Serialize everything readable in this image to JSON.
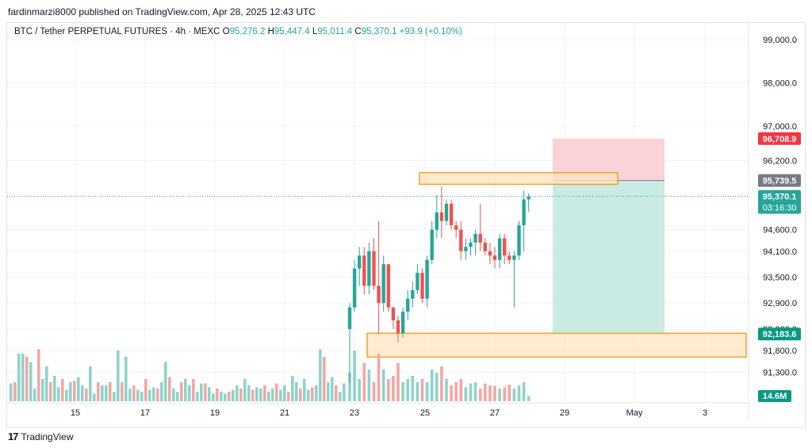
{
  "header": {
    "publisher": "fardinmarzi8000 published on TradingView.com, Apr 28, 2025 12:43 UTC"
  },
  "legend": {
    "symbol": "BTC / Tether PERPETUAL FUTURES · 4h · MEXC",
    "open_label": "O",
    "open": "95,276.2",
    "high_label": "H",
    "high": "95,447.4",
    "low_label": "L",
    "low": "95,011.4",
    "close_label": "C",
    "close": "95,370.1",
    "change": "+93.9 (+0.10%)"
  },
  "price_axis": {
    "ticks": [
      "99,000.0",
      "98,000.0",
      "97,000.0",
      "96,200.0",
      "94,600.0",
      "94,100.0",
      "93,500.0",
      "92,900.0",
      "92,300.0",
      "91,800.0",
      "91,300.0"
    ],
    "tick_values": [
      99000,
      98000,
      97000,
      96200,
      94600,
      94100,
      93500,
      92900,
      92300,
      91800,
      91300
    ],
    "badges": {
      "stop": {
        "text": "96,708.9",
        "value": 96708.9,
        "color": "#f23645"
      },
      "entry": {
        "text": "95,739.5",
        "value": 95739.5,
        "color": "#787b86"
      },
      "last": {
        "text": "95,370.1",
        "value": 95370.1,
        "color": "#26a69a"
      },
      "countdown": {
        "text": "03:16:30"
      },
      "target": {
        "text": "92,183.6",
        "value": 92183.6,
        "color": "#089981"
      },
      "volume": {
        "text": "14.6M",
        "color": "#089981"
      }
    }
  },
  "time_axis": {
    "labels": [
      "15",
      "17",
      "19",
      "21",
      "23",
      "25",
      "27",
      "29",
      "May",
      "3"
    ]
  },
  "footer": {
    "brand": "TradingView"
  },
  "colors": {
    "up": "#26a69a",
    "down": "#ef5350",
    "up_vol": "#8fd3c9",
    "down_vol": "#f4a6a4",
    "zone_fill": "#fde4c0",
    "zone_border": "#f0a32f",
    "risk": "#f9d3d6",
    "reward": "#c9ebe3",
    "grid": "#f0f3fa"
  },
  "chart_data": {
    "type": "candlestick",
    "title": "BTC / Tether PERPETUAL FUTURES · 4h · MEXC",
    "timeframe": "4h",
    "x_labels": [
      "15",
      "17",
      "19",
      "21",
      "23",
      "25",
      "27",
      "29",
      "May",
      "3"
    ],
    "ylim": [
      91000,
      99400
    ],
    "candles": [
      {
        "o": 92300,
        "h": 92900,
        "l": 91050,
        "c": 92800
      },
      {
        "o": 92800,
        "h": 93900,
        "l": 92700,
        "c": 93700
      },
      {
        "o": 93700,
        "h": 94200,
        "l": 93300,
        "c": 94000
      },
      {
        "o": 94000,
        "h": 94200,
        "l": 93100,
        "c": 93300
      },
      {
        "o": 93300,
        "h": 94300,
        "l": 93100,
        "c": 94100
      },
      {
        "o": 94100,
        "h": 94400,
        "l": 93200,
        "c": 93300
      },
      {
        "o": 93300,
        "h": 94800,
        "l": 92200,
        "c": 92900
      },
      {
        "o": 92900,
        "h": 94000,
        "l": 92700,
        "c": 93800
      },
      {
        "o": 93800,
        "h": 93800,
        "l": 92700,
        "c": 92800
      },
      {
        "o": 92800,
        "h": 92800,
        "l": 92300,
        "c": 92500
      },
      {
        "o": 92500,
        "h": 92600,
        "l": 92000,
        "c": 92200
      },
      {
        "o": 92200,
        "h": 92800,
        "l": 92100,
        "c": 92700
      },
      {
        "o": 92700,
        "h": 93200,
        "l": 92500,
        "c": 93000
      },
      {
        "o": 93000,
        "h": 93400,
        "l": 92800,
        "c": 93200
      },
      {
        "o": 93200,
        "h": 93800,
        "l": 93100,
        "c": 93600
      },
      {
        "o": 93600,
        "h": 93700,
        "l": 92900,
        "c": 93000
      },
      {
        "o": 93000,
        "h": 94000,
        "l": 92800,
        "c": 93900
      },
      {
        "o": 93900,
        "h": 94800,
        "l": 93800,
        "c": 94600
      },
      {
        "o": 94600,
        "h": 95400,
        "l": 94400,
        "c": 95000
      },
      {
        "o": 95000,
        "h": 95600,
        "l": 94400,
        "c": 94800
      },
      {
        "o": 94800,
        "h": 95300,
        "l": 94700,
        "c": 95200
      },
      {
        "o": 95200,
        "h": 95300,
        "l": 94600,
        "c": 94700
      },
      {
        "o": 94700,
        "h": 94800,
        "l": 94400,
        "c": 94600
      },
      {
        "o": 94600,
        "h": 94800,
        "l": 93900,
        "c": 94100
      },
      {
        "o": 94100,
        "h": 94400,
        "l": 93900,
        "c": 94200
      },
      {
        "o": 94200,
        "h": 94400,
        "l": 94000,
        "c": 94300
      },
      {
        "o": 94300,
        "h": 94600,
        "l": 94000,
        "c": 94500
      },
      {
        "o": 94500,
        "h": 95200,
        "l": 94100,
        "c": 94300
      },
      {
        "o": 94300,
        "h": 94400,
        "l": 94000,
        "c": 94100
      },
      {
        "o": 94100,
        "h": 94300,
        "l": 93800,
        "c": 94000
      },
      {
        "o": 94000,
        "h": 94200,
        "l": 93700,
        "c": 93900
      },
      {
        "o": 93900,
        "h": 94500,
        "l": 93700,
        "c": 94400
      },
      {
        "o": 94400,
        "h": 94500,
        "l": 93800,
        "c": 94000
      },
      {
        "o": 94000,
        "h": 94100,
        "l": 93800,
        "c": 93900
      },
      {
        "o": 93900,
        "h": 94100,
        "l": 92800,
        "c": 94000
      },
      {
        "o": 94000,
        "h": 94800,
        "l": 93900,
        "c": 94700
      },
      {
        "o": 94700,
        "h": 95500,
        "l": 94100,
        "c": 95300
      },
      {
        "o": 95300,
        "h": 95447,
        "l": 95011,
        "c": 95370
      }
    ],
    "volumes": [
      0.45,
      0.8,
      0.35,
      0.6,
      0.5,
      0.3,
      0.75,
      0.5,
      0.35,
      0.4,
      0.6,
      0.3,
      0.35,
      0.4,
      0.3,
      0.35,
      0.3,
      0.5,
      0.45,
      0.55,
      0.35,
      0.25,
      0.3,
      0.35,
      0.22,
      0.28,
      0.3,
      0.2,
      0.28,
      0.25,
      0.24,
      0.2,
      0.22,
      0.26,
      0.2,
      0.25,
      0.3,
      0.08
    ],
    "zones": [
      {
        "name": "supply zone",
        "from": 95650,
        "to": 95920
      },
      {
        "name": "demand zone",
        "from": 91650,
        "to": 92200
      }
    ],
    "position": {
      "side": "short",
      "entry": 95739.5,
      "stop": 96708.9,
      "target": 92183.6
    },
    "last_price": 95370.1,
    "volume_last": "14.6M",
    "grid": true
  }
}
